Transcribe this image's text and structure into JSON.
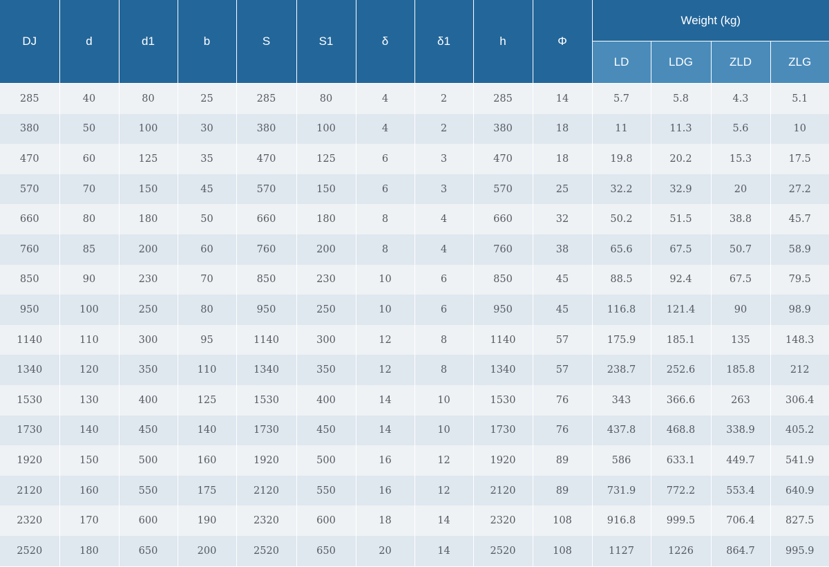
{
  "header": {
    "columns": [
      "DJ",
      "d",
      "d1",
      "b",
      "S",
      "S1",
      "δ",
      "δ1",
      "h",
      "Φ"
    ],
    "group_label": "Weight (kg)",
    "sub_columns": [
      "LD",
      "LDG",
      "ZLD",
      "ZLG"
    ]
  },
  "rows": [
    [
      "285",
      "40",
      "80",
      "25",
      "285",
      "80",
      "4",
      "2",
      "285",
      "14",
      "5.7",
      "5.8",
      "4.3",
      "5.1"
    ],
    [
      "380",
      "50",
      "100",
      "30",
      "380",
      "100",
      "4",
      "2",
      "380",
      "18",
      "11",
      "11.3",
      "5.6",
      "10"
    ],
    [
      "470",
      "60",
      "125",
      "35",
      "470",
      "125",
      "6",
      "3",
      "470",
      "18",
      "19.8",
      "20.2",
      "15.3",
      "17.5"
    ],
    [
      "570",
      "70",
      "150",
      "45",
      "570",
      "150",
      "6",
      "3",
      "570",
      "25",
      "32.2",
      "32.9",
      "20",
      "27.2"
    ],
    [
      "660",
      "80",
      "180",
      "50",
      "660",
      "180",
      "8",
      "4",
      "660",
      "32",
      "50.2",
      "51.5",
      "38.8",
      "45.7"
    ],
    [
      "760",
      "85",
      "200",
      "60",
      "760",
      "200",
      "8",
      "4",
      "760",
      "38",
      "65.6",
      "67.5",
      "50.7",
      "58.9"
    ],
    [
      "850",
      "90",
      "230",
      "70",
      "850",
      "230",
      "10",
      "6",
      "850",
      "45",
      "88.5",
      "92.4",
      "67.5",
      "79.5"
    ],
    [
      "950",
      "100",
      "250",
      "80",
      "950",
      "250",
      "10",
      "6",
      "950",
      "45",
      "116.8",
      "121.4",
      "90",
      "98.9"
    ],
    [
      "1140",
      "110",
      "300",
      "95",
      "1140",
      "300",
      "12",
      "8",
      "1140",
      "57",
      "175.9",
      "185.1",
      "135",
      "148.3"
    ],
    [
      "1340",
      "120",
      "350",
      "110",
      "1340",
      "350",
      "12",
      "8",
      "1340",
      "57",
      "238.7",
      "252.6",
      "185.8",
      "212"
    ],
    [
      "1530",
      "130",
      "400",
      "125",
      "1530",
      "400",
      "14",
      "10",
      "1530",
      "76",
      "343",
      "366.6",
      "263",
      "306.4"
    ],
    [
      "1730",
      "140",
      "450",
      "140",
      "1730",
      "450",
      "14",
      "10",
      "1730",
      "76",
      "437.8",
      "468.8",
      "338.9",
      "405.2"
    ],
    [
      "1920",
      "150",
      "500",
      "160",
      "1920",
      "500",
      "16",
      "12",
      "1920",
      "89",
      "586",
      "633.1",
      "449.7",
      "541.9"
    ],
    [
      "2120",
      "160",
      "550",
      "175",
      "2120",
      "550",
      "16",
      "12",
      "2120",
      "89",
      "731.9",
      "772.2",
      "553.4",
      "640.9"
    ],
    [
      "2320",
      "170",
      "600",
      "190",
      "2320",
      "600",
      "18",
      "14",
      "2320",
      "108",
      "916.8",
      "999.5",
      "706.4",
      "827.5"
    ],
    [
      "2520",
      "180",
      "650",
      "200",
      "2520",
      "650",
      "20",
      "14",
      "2520",
      "108",
      "1127",
      "1226",
      "864.7",
      "995.9"
    ]
  ]
}
